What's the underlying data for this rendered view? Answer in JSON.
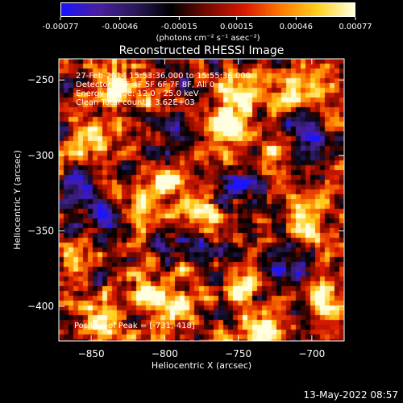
{
  "colorbar": {
    "ticks": [
      "-0.00077",
      "-0.00046",
      "-0.00015",
      "0.00015",
      "0.00046",
      "0.00077"
    ],
    "tick_values": [
      -0.00077,
      -0.00046,
      -0.00015,
      0.00015,
      0.00046,
      0.00077
    ],
    "range": [
      -0.00077,
      0.00077
    ],
    "units_label": "(photons cm⁻² s⁻¹ asec⁻²)",
    "colormap_stops": [
      "#1a14ff",
      "#4a1e9e",
      "#2a1a5a",
      "#000000",
      "#7a0a00",
      "#d81a00",
      "#ff7a00",
      "#ffd020",
      "#ffffe0"
    ]
  },
  "chart_data": {
    "type": "heatmap",
    "title": "Reconstructed RHESSI Image",
    "xlabel": "Heliocentric X (arcsec)",
    "ylabel": "Heliocentric Y (arcsec)",
    "xlim": [
      -872,
      -678
    ],
    "ylim": [
      -423,
      -236
    ],
    "xticks": [
      -850,
      -800,
      -750,
      -700
    ],
    "yticks": [
      -400,
      -350,
      -300,
      -250
    ],
    "xtick_labels": [
      "−850",
      "−800",
      "−750",
      "−700"
    ],
    "ytick_labels": [
      "−400",
      "−350",
      "−300",
      "−250"
    ],
    "grid": false,
    "info_lines": [
      "27-Feb-2014 15:53:36.000 to 15:55:36.000",
      "Detectors: 3F 4F 5F 6F 7F 8F, All 0",
      "Energy Range: 12.0 - 25.0 keV",
      "Clean    Total counts: 3.62E+03"
    ],
    "peak_label": "Position of Peak = [-731,-418]",
    "peak_position": [
      -731,
      -418
    ],
    "bright_sources": [
      {
        "x": -810,
        "y": -392,
        "level": 1.0
      },
      {
        "x": -792,
        "y": -402,
        "level": 0.95
      },
      {
        "x": -840,
        "y": -405,
        "level": 0.7
      },
      {
        "x": -731,
        "y": -415,
        "level": 1.0
      },
      {
        "x": -745,
        "y": -262,
        "level": 0.95
      },
      {
        "x": -760,
        "y": -280,
        "level": 0.85
      },
      {
        "x": -725,
        "y": -300,
        "level": 0.8
      },
      {
        "x": -705,
        "y": -345,
        "level": 0.75
      },
      {
        "x": -830,
        "y": -255,
        "level": 0.85
      },
      {
        "x": -855,
        "y": -290,
        "level": 0.7
      },
      {
        "x": -795,
        "y": -315,
        "level": 0.7
      },
      {
        "x": -770,
        "y": -340,
        "level": 0.65
      },
      {
        "x": -820,
        "y": -330,
        "level": 0.65
      },
      {
        "x": -860,
        "y": -370,
        "level": 0.6
      },
      {
        "x": -700,
        "y": -255,
        "level": 0.8
      },
      {
        "x": -745,
        "y": -385,
        "level": 0.7
      },
      {
        "x": -690,
        "y": -395,
        "level": 0.65
      }
    ],
    "dark_sources": [
      {
        "x": -860,
        "y": -320,
        "level": 0.9
      },
      {
        "x": -750,
        "y": -320,
        "level": 0.9
      },
      {
        "x": -775,
        "y": -365,
        "level": 0.8
      },
      {
        "x": -720,
        "y": -370,
        "level": 0.8
      },
      {
        "x": -840,
        "y": -340,
        "level": 0.7
      },
      {
        "x": -700,
        "y": -285,
        "level": 0.7
      },
      {
        "x": -800,
        "y": -285,
        "level": 0.6
      }
    ]
  },
  "footer": {
    "timestamp": "13-May-2022 08:57"
  }
}
